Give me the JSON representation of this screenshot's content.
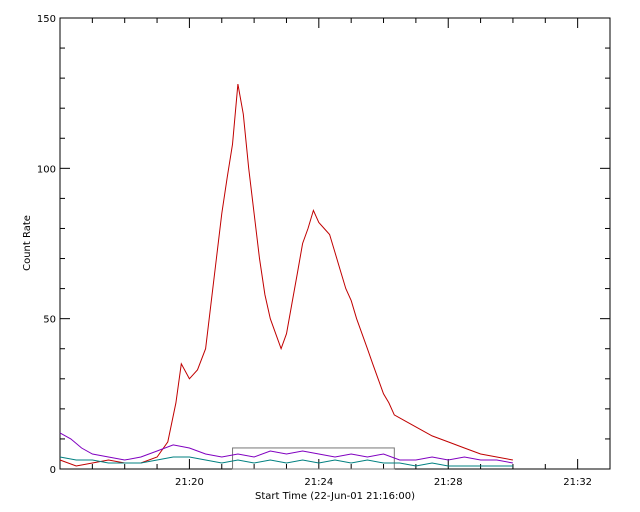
{
  "chart_data": {
    "type": "line",
    "title": "",
    "xlabel": "Start Time (22-Jun-01 21:16:00)",
    "ylabel": "Count Rate",
    "x_unit": "time HH:MM",
    "xlim": [
      "21:16:00",
      "21:33:00"
    ],
    "ylim": [
      0,
      150
    ],
    "x_tick_labels": [
      "21:20",
      "21:24",
      "21:28",
      "21:32"
    ],
    "y_tick_labels": [
      "0",
      "50",
      "100",
      "150"
    ],
    "grid": false,
    "legend": "none",
    "highlight_box": {
      "x_range": [
        "21:21:20",
        "21:26:20"
      ],
      "y_range": [
        0,
        7
      ]
    },
    "series": [
      {
        "color": "#c00000",
        "points": [
          [
            "21:16:00",
            3
          ],
          [
            "21:16:30",
            1
          ],
          [
            "21:17:00",
            2
          ],
          [
            "21:17:30",
            3
          ],
          [
            "21:18:00",
            2
          ],
          [
            "21:18:30",
            2
          ],
          [
            "21:19:00",
            4
          ],
          [
            "21:19:20",
            9
          ],
          [
            "21:19:35",
            22
          ],
          [
            "21:19:45",
            35
          ],
          [
            "21:20:00",
            30
          ],
          [
            "21:20:15",
            33
          ],
          [
            "21:20:30",
            40
          ],
          [
            "21:20:40",
            55
          ],
          [
            "21:20:50",
            70
          ],
          [
            "21:21:00",
            85
          ],
          [
            "21:21:10",
            97
          ],
          [
            "21:21:20",
            108
          ],
          [
            "21:21:30",
            128
          ],
          [
            "21:21:40",
            118
          ],
          [
            "21:21:50",
            100
          ],
          [
            "21:22:00",
            85
          ],
          [
            "21:22:10",
            70
          ],
          [
            "21:22:20",
            58
          ],
          [
            "21:22:30",
            50
          ],
          [
            "21:22:40",
            45
          ],
          [
            "21:22:50",
            40
          ],
          [
            "21:23:00",
            45
          ],
          [
            "21:23:10",
            55
          ],
          [
            "21:23:20",
            65
          ],
          [
            "21:23:30",
            75
          ],
          [
            "21:23:40",
            80
          ],
          [
            "21:23:50",
            86
          ],
          [
            "21:24:00",
            82
          ],
          [
            "21:24:10",
            80
          ],
          [
            "21:24:20",
            78
          ],
          [
            "21:24:30",
            72
          ],
          [
            "21:24:40",
            66
          ],
          [
            "21:24:50",
            60
          ],
          [
            "21:25:00",
            56
          ],
          [
            "21:25:10",
            50
          ],
          [
            "21:25:20",
            45
          ],
          [
            "21:25:30",
            40
          ],
          [
            "21:25:40",
            35
          ],
          [
            "21:25:50",
            30
          ],
          [
            "21:26:00",
            25
          ],
          [
            "21:26:10",
            22
          ],
          [
            "21:26:20",
            18
          ],
          [
            "21:26:40",
            16
          ],
          [
            "21:27:00",
            14
          ],
          [
            "21:27:30",
            11
          ],
          [
            "21:28:00",
            9
          ],
          [
            "21:28:30",
            7
          ],
          [
            "21:29:00",
            5
          ],
          [
            "21:29:30",
            4
          ],
          [
            "21:30:00",
            3
          ]
        ]
      },
      {
        "color": "#8000c0",
        "points": [
          [
            "21:16:00",
            12
          ],
          [
            "21:16:20",
            10
          ],
          [
            "21:16:40",
            7
          ],
          [
            "21:17:00",
            5
          ],
          [
            "21:17:30",
            4
          ],
          [
            "21:18:00",
            3
          ],
          [
            "21:18:30",
            4
          ],
          [
            "21:19:00",
            6
          ],
          [
            "21:19:30",
            8
          ],
          [
            "21:20:00",
            7
          ],
          [
            "21:20:30",
            5
          ],
          [
            "21:21:00",
            4
          ],
          [
            "21:21:30",
            5
          ],
          [
            "21:22:00",
            4
          ],
          [
            "21:22:30",
            6
          ],
          [
            "21:23:00",
            5
          ],
          [
            "21:23:30",
            6
          ],
          [
            "21:24:00",
            5
          ],
          [
            "21:24:30",
            4
          ],
          [
            "21:25:00",
            5
          ],
          [
            "21:25:30",
            4
          ],
          [
            "21:26:00",
            5
          ],
          [
            "21:26:30",
            3
          ],
          [
            "21:27:00",
            3
          ],
          [
            "21:27:30",
            4
          ],
          [
            "21:28:00",
            3
          ],
          [
            "21:28:30",
            4
          ],
          [
            "21:29:00",
            3
          ],
          [
            "21:29:30",
            3
          ],
          [
            "21:30:00",
            2
          ]
        ]
      },
      {
        "color": "#008080",
        "points": [
          [
            "21:16:00",
            4
          ],
          [
            "21:16:30",
            3
          ],
          [
            "21:17:00",
            3
          ],
          [
            "21:17:30",
            2
          ],
          [
            "21:18:00",
            2
          ],
          [
            "21:18:30",
            2
          ],
          [
            "21:19:00",
            3
          ],
          [
            "21:19:30",
            4
          ],
          [
            "21:20:00",
            4
          ],
          [
            "21:20:30",
            3
          ],
          [
            "21:21:00",
            2
          ],
          [
            "21:21:30",
            3
          ],
          [
            "21:22:00",
            2
          ],
          [
            "21:22:30",
            3
          ],
          [
            "21:23:00",
            2
          ],
          [
            "21:23:30",
            3
          ],
          [
            "21:24:00",
            2
          ],
          [
            "21:24:30",
            3
          ],
          [
            "21:25:00",
            2
          ],
          [
            "21:25:30",
            3
          ],
          [
            "21:26:00",
            2
          ],
          [
            "21:26:30",
            2
          ],
          [
            "21:27:00",
            1
          ],
          [
            "21:27:30",
            2
          ],
          [
            "21:28:00",
            1
          ],
          [
            "21:28:30",
            1
          ],
          [
            "21:29:00",
            1
          ],
          [
            "21:29:30",
            1
          ],
          [
            "21:30:00",
            1
          ]
        ]
      }
    ]
  }
}
